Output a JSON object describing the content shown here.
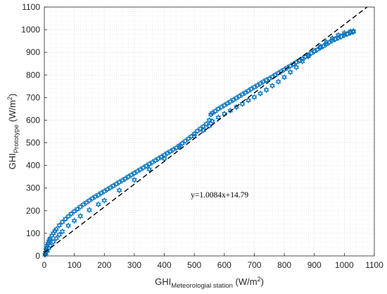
{
  "chart_data": {
    "type": "scatter",
    "title": "",
    "xlabel": {
      "main": "GHI",
      "sub": "Meteorologial station",
      "unit_prefix": " (W/m",
      "unit_sup": "2",
      "unit_suffix": ")"
    },
    "ylabel": {
      "main": "GHI",
      "sub": "Prototype",
      "unit_prefix": " (W/m",
      "unit_sup": "2",
      "unit_suffix": ")"
    },
    "xlim": [
      0,
      1100
    ],
    "ylim": [
      0,
      1100
    ],
    "xticks": [
      0,
      100,
      200,
      300,
      400,
      500,
      600,
      700,
      800,
      900,
      1000,
      1100
    ],
    "yticks": [
      0,
      100,
      200,
      300,
      400,
      500,
      600,
      700,
      800,
      900,
      1000,
      1100
    ],
    "grid": true,
    "marker": "hexagram",
    "marker_color": "#0072BD",
    "fit_line": {
      "slope": 1.0084,
      "intercept": 14.79,
      "style": "dashed",
      "color": "#000000"
    },
    "annotation": "y=1.0084x+14.79",
    "series": [
      {
        "x": [
          2,
          4,
          6,
          8,
          10,
          12,
          15,
          18,
          20,
          25,
          30,
          35,
          40,
          50,
          60,
          70,
          80,
          90,
          100,
          110,
          120,
          130,
          140,
          150,
          160,
          170,
          180,
          190,
          200,
          210,
          220,
          230,
          240,
          250,
          260,
          270,
          280,
          290,
          300,
          310,
          320,
          330,
          340,
          350,
          360,
          370,
          380,
          390,
          400,
          410,
          420,
          430,
          440,
          450,
          460,
          470,
          480,
          490,
          500,
          510,
          520,
          530,
          540,
          550,
          555,
          560,
          570,
          580,
          590,
          600,
          610,
          620,
          630,
          640,
          650,
          660,
          670,
          680,
          690,
          700,
          710,
          720,
          730,
          740,
          750,
          760,
          770,
          780,
          790,
          800,
          810,
          820,
          830,
          840,
          850,
          860,
          870,
          880,
          890,
          900,
          910,
          920,
          930,
          940,
          950,
          960,
          970,
          980,
          990,
          1000,
          1010,
          1020,
          1030
        ],
        "y": [
          5,
          15,
          25,
          35,
          45,
          55,
          65,
          72,
          78,
          90,
          100,
          110,
          118,
          135,
          150,
          163,
          175,
          186,
          197,
          207,
          217,
          227,
          236,
          245,
          254,
          262,
          270,
          278,
          286,
          294,
          302,
          310,
          318,
          326,
          334,
          342,
          350,
          358,
          366,
          374,
          382,
          390,
          398,
          406,
          414,
          422,
          430,
          438,
          446,
          454,
          462,
          470,
          478,
          488,
          498,
          508,
          518,
          528,
          540,
          552,
          562,
          572,
          583,
          600,
          625,
          632,
          640,
          650,
          658,
          666,
          674,
          682,
          690,
          698,
          706,
          714,
          722,
          730,
          738,
          746,
          754,
          762,
          770,
          777,
          784,
          792,
          800,
          808,
          816,
          824,
          832,
          840,
          848,
          856,
          864,
          872,
          880,
          888,
          896,
          904,
          912,
          920,
          928,
          936,
          944,
          952,
          958,
          964,
          970,
          976,
          981,
          986,
          990
        ]
      },
      {
        "x": [
          5,
          10,
          15,
          20,
          30,
          40,
          50,
          60,
          80,
          100,
          120,
          150,
          180,
          200,
          250,
          300,
          350,
          400,
          450,
          500,
          530,
          550,
          560,
          580,
          600,
          620,
          640,
          660,
          680,
          700,
          720,
          740,
          760,
          780,
          800,
          820,
          840,
          860,
          880,
          900,
          920,
          940,
          960,
          980,
          1000,
          1020,
          1030
        ],
        "y": [
          10,
          22,
          35,
          46,
          62,
          78,
          94,
          108,
          134,
          156,
          176,
          203,
          228,
          245,
          290,
          336,
          383,
          430,
          480,
          528,
          556,
          575,
          595,
          612,
          628,
          642,
          658,
          672,
          688,
          702,
          718,
          734,
          752,
          770,
          790,
          812,
          834,
          860,
          882,
          905,
          925,
          945,
          962,
          976,
          985,
          992,
          994
        ]
      }
    ]
  }
}
